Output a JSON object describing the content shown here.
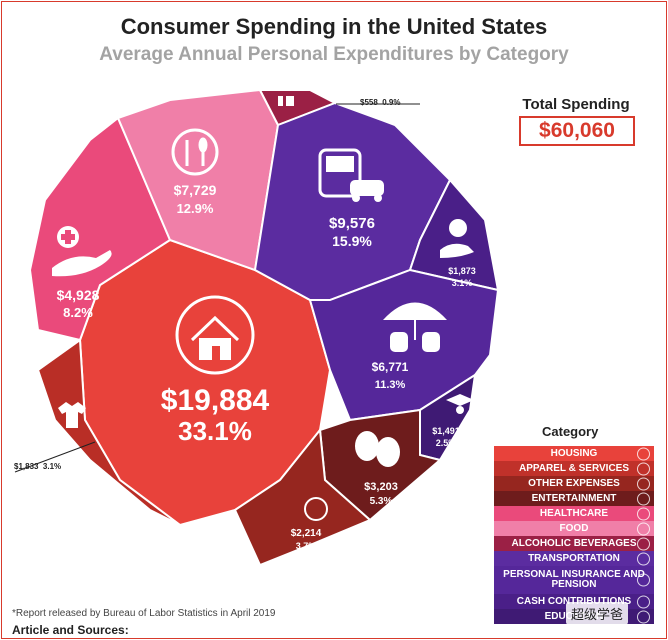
{
  "header": {
    "title": "Consumer Spending in the United States",
    "subtitle": "Average Annual Personal Expenditures by Category"
  },
  "total": {
    "label": "Total Spending",
    "value": "$60,060"
  },
  "chart_data": {
    "type": "pie",
    "title": "Consumer Spending in the United States",
    "subtitle": "Average Annual Personal Expenditures by Category",
    "total": 60060,
    "segments": [
      {
        "category": "Housing",
        "amount": 19884,
        "amount_label": "$19,884",
        "percent": 33.1,
        "percent_label": "33.1%",
        "color": "#e8423b",
        "icon": "house-icon"
      },
      {
        "category": "Healthcare",
        "amount": 4928,
        "amount_label": "$4,928",
        "percent": 8.2,
        "percent_label": "8.2%",
        "color": "#ea4a7b",
        "icon": "medical-hand-icon"
      },
      {
        "category": "Food",
        "amount": 7729,
        "amount_label": "$7,729",
        "percent": 12.9,
        "percent_label": "12.9%",
        "color": "#f07fa8",
        "icon": "fork-knife-icon"
      },
      {
        "category": "Alcoholic Beverages",
        "amount": 558,
        "amount_label": "$558",
        "percent": 0.9,
        "percent_label": "0.9%",
        "color": "#9b2045",
        "icon": "wine-icon"
      },
      {
        "category": "Transportation",
        "amount": 9576,
        "amount_label": "$9,576",
        "percent": 15.9,
        "percent_label": "15.9%",
        "color": "#5b2ca0",
        "icon": "bus-car-icon"
      },
      {
        "category": "Cash Contributions",
        "amount": 1873,
        "amount_label": "$1,873",
        "percent": 3.1,
        "percent_label": "3.1%",
        "color": "#4a1f88",
        "icon": "donation-icon"
      },
      {
        "category": "Personal Insurance and Pension",
        "amount": 6771,
        "amount_label": "$6,771",
        "percent": 11.3,
        "percent_label": "11.3%",
        "color": "#55279a",
        "icon": "umbrella-money-icon"
      },
      {
        "category": "Education",
        "amount": 1491,
        "amount_label": "$1,491",
        "percent": 2.5,
        "percent_label": "2.5%",
        "color": "#3f1a74",
        "icon": "graduation-icon"
      },
      {
        "category": "Entertainment",
        "amount": 3203,
        "amount_label": "$3,203",
        "percent": 5.3,
        "percent_label": "5.3%",
        "color": "#6e1c1c",
        "icon": "theater-masks-icon"
      },
      {
        "category": "Other Expenses",
        "amount": 2214,
        "amount_label": "$2,214",
        "percent": 3.7,
        "percent_label": "3.7%",
        "color": "#96261f",
        "icon": "dollar-circle-icon"
      },
      {
        "category": "Apparel & Services",
        "amount": 1833,
        "amount_label": "$1,833",
        "percent": 3.1,
        "percent_label": "3.1%",
        "color": "#b92e26",
        "icon": "shirt-icon"
      }
    ],
    "callouts": [
      {
        "category": "Alcoholic Beverages",
        "amount_label": "$558",
        "percent_label": "0.9%"
      },
      {
        "category": "Apparel & Services",
        "amount_label": "$1,833",
        "percent_label": "3.1%"
      }
    ],
    "legend_placement": "bottom-right"
  },
  "legend": {
    "title": "Category",
    "items": [
      {
        "label": "HOUSING",
        "color": "#e8423b"
      },
      {
        "label": "APPAREL & SERVICES",
        "color": "#c0312a"
      },
      {
        "label": "OTHER EXPENSES",
        "color": "#96261f"
      },
      {
        "label": "ENTERTAINMENT",
        "color": "#6e1c1c"
      },
      {
        "label": "HEALTHCARE",
        "color": "#ea4a7b"
      },
      {
        "label": "FOOD",
        "color": "#f07fa8"
      },
      {
        "label": "ALCOHOLIC BEVERAGES",
        "color": "#9b2045"
      },
      {
        "label": "TRANSPORTATION",
        "color": "#5b2ca0"
      },
      {
        "label": "PERSONAL INSURANCE AND PENSION",
        "color": "#55279a"
      },
      {
        "label": "CASH CONTRIBUTIONS",
        "color": "#4a1f88"
      },
      {
        "label": "EDUCATION",
        "color": "#3f1a74"
      }
    ]
  },
  "footer": {
    "note": "*Report released by Bureau of Labor Statistics  in April 2019",
    "sources": "Article and Sources:",
    "watermark": "超级学爸"
  }
}
